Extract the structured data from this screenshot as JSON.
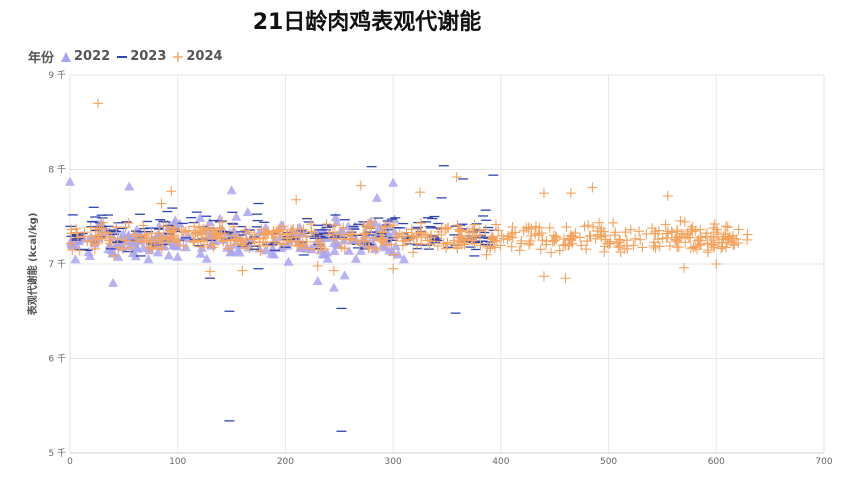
{
  "chart_data": {
    "type": "scatter",
    "title": "21日龄肉鸡表观代谢能",
    "xlabel": "",
    "ylabel": "表观代谢能 (kcal/kg)",
    "xlim": [
      0,
      700
    ],
    "ylim": [
      5000,
      9000
    ],
    "x_ticks": [
      0,
      100,
      200,
      300,
      400,
      500,
      600,
      700
    ],
    "y_ticks": [
      {
        "value": 5000,
        "label": "5 千"
      },
      {
        "value": 6000,
        "label": "6 千"
      },
      {
        "value": 7000,
        "label": "7 千"
      },
      {
        "value": 8000,
        "label": "8 千"
      },
      {
        "value": 9000,
        "label": "9 千"
      }
    ],
    "grid": true,
    "legend": {
      "title": "年份",
      "position": "top-left"
    },
    "series": [
      {
        "name": "2022",
        "marker": "triangle",
        "color": "#a9a4f2",
        "n": 220,
        "x_range": [
          0,
          305
        ],
        "center": 7250,
        "spread": 180,
        "points": [
          [
            0,
            7870
          ],
          [
            55,
            7820
          ],
          [
            150,
            7780
          ],
          [
            285,
            7700
          ],
          [
            300,
            7860
          ],
          [
            165,
            7550
          ],
          [
            230,
            6820
          ],
          [
            245,
            6750
          ],
          [
            255,
            6880
          ],
          [
            40,
            6800
          ],
          [
            5,
            7050
          ],
          [
            310,
            7050
          ]
        ]
      },
      {
        "name": "2023",
        "marker": "dash",
        "color": "#2f45b2",
        "n": 260,
        "x_range": [
          0,
          395
        ],
        "center": 7330,
        "spread": 170,
        "points": [
          [
            148,
            5340
          ],
          [
            252,
            5230
          ],
          [
            148,
            6500
          ],
          [
            252,
            6530
          ],
          [
            358,
            6480
          ],
          [
            175,
            7640
          ],
          [
            280,
            8030
          ],
          [
            347,
            8040
          ],
          [
            365,
            7900
          ],
          [
            393,
            7940
          ],
          [
            345,
            7700
          ],
          [
            22,
            7600
          ],
          [
            130,
            6850
          ],
          [
            220,
            7480
          ],
          [
            175,
            6950
          ]
        ]
      },
      {
        "name": "2024",
        "marker": "plus",
        "color": "#f6a25c",
        "n": 560,
        "x_range": [
          0,
          630
        ],
        "center": 7280,
        "spread": 130,
        "points": [
          [
            26,
            8700
          ],
          [
            94,
            7770
          ],
          [
            270,
            7830
          ],
          [
            359,
            7920
          ],
          [
            325,
            7760
          ],
          [
            485,
            7810
          ],
          [
            440,
            7750
          ],
          [
            465,
            7750
          ],
          [
            555,
            7720
          ],
          [
            210,
            7680
          ],
          [
            460,
            6850
          ],
          [
            440,
            6870
          ],
          [
            570,
            6960
          ],
          [
            600,
            7000
          ],
          [
            300,
            6950
          ],
          [
            130,
            6920
          ],
          [
            160,
            6930
          ],
          [
            245,
            6930
          ],
          [
            85,
            7640
          ],
          [
            230,
            6980
          ]
        ]
      }
    ]
  }
}
